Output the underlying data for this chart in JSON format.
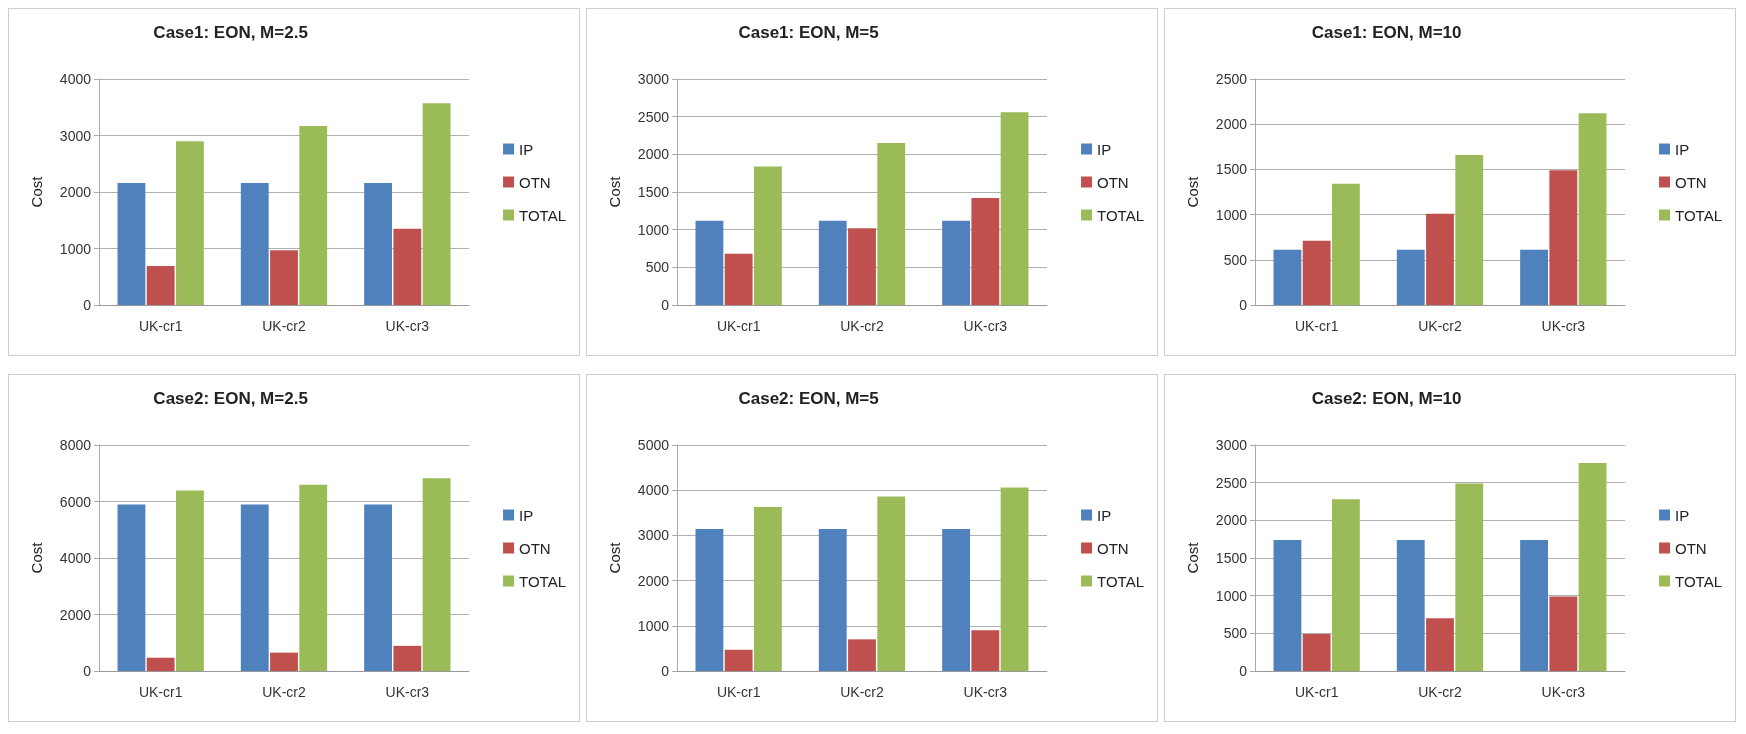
{
  "chart_data": [
    {
      "type": "bar",
      "title": "Case1: EON, M=2.5",
      "ylabel": "Cost",
      "categories": [
        "UK-cr1",
        "UK-cr2",
        "UK-cr3"
      ],
      "ylim": [
        0,
        4000
      ],
      "yticks": [
        0,
        1000,
        2000,
        3000,
        4000
      ],
      "grid": "y",
      "legend": "right",
      "series": [
        {
          "name": "IP",
          "color": "#4f81bd",
          "values": [
            2160,
            2160,
            2160
          ]
        },
        {
          "name": "OTN",
          "color": "#c0504d",
          "values": [
            690,
            970,
            1350
          ]
        },
        {
          "name": "TOTAL",
          "color": "#9bbb59",
          "values": [
            2900,
            3170,
            3570
          ]
        }
      ]
    },
    {
      "type": "bar",
      "title": "Case1: EON, M=5",
      "ylabel": "Cost",
      "categories": [
        "UK-cr1",
        "UK-cr2",
        "UK-cr3"
      ],
      "ylim": [
        0,
        3000
      ],
      "yticks": [
        0,
        500,
        1000,
        1500,
        2000,
        2500,
        3000
      ],
      "grid": "y",
      "legend": "right",
      "series": [
        {
          "name": "IP",
          "color": "#4f81bd",
          "values": [
            1120,
            1120,
            1120
          ]
        },
        {
          "name": "OTN",
          "color": "#c0504d",
          "values": [
            680,
            1020,
            1420
          ]
        },
        {
          "name": "TOTAL",
          "color": "#9bbb59",
          "values": [
            1840,
            2150,
            2560
          ]
        }
      ]
    },
    {
      "type": "bar",
      "title": "Case1: EON, M=10",
      "ylabel": "Cost",
      "categories": [
        "UK-cr1",
        "UK-cr2",
        "UK-cr3"
      ],
      "ylim": [
        0,
        2500
      ],
      "yticks": [
        0,
        500,
        1000,
        1500,
        2000,
        2500
      ],
      "grid": "y",
      "legend": "right",
      "series": [
        {
          "name": "IP",
          "color": "#4f81bd",
          "values": [
            610,
            610,
            610
          ]
        },
        {
          "name": "OTN",
          "color": "#c0504d",
          "values": [
            710,
            1010,
            1490
          ]
        },
        {
          "name": "TOTAL",
          "color": "#9bbb59",
          "values": [
            1340,
            1660,
            2120
          ]
        }
      ]
    },
    {
      "type": "bar",
      "title": "Case2: EON, M=2.5",
      "ylabel": "Cost",
      "categories": [
        "UK-cr1",
        "UK-cr2",
        "UK-cr3"
      ],
      "ylim": [
        0,
        8000
      ],
      "yticks": [
        0,
        2000,
        4000,
        6000,
        8000
      ],
      "grid": "y",
      "legend": "right",
      "series": [
        {
          "name": "IP",
          "color": "#4f81bd",
          "values": [
            5890,
            5890,
            5890
          ]
        },
        {
          "name": "OTN",
          "color": "#c0504d",
          "values": [
            470,
            650,
            890
          ]
        },
        {
          "name": "TOTAL",
          "color": "#9bbb59",
          "values": [
            6390,
            6590,
            6820
          ]
        }
      ]
    },
    {
      "type": "bar",
      "title": "Case2: EON, M=5",
      "ylabel": "Cost",
      "categories": [
        "UK-cr1",
        "UK-cr2",
        "UK-cr3"
      ],
      "ylim": [
        0,
        5000
      ],
      "yticks": [
        0,
        1000,
        2000,
        3000,
        4000,
        5000
      ],
      "grid": "y",
      "legend": "right",
      "series": [
        {
          "name": "IP",
          "color": "#4f81bd",
          "values": [
            3140,
            3140,
            3140
          ]
        },
        {
          "name": "OTN",
          "color": "#c0504d",
          "values": [
            470,
            700,
            900
          ]
        },
        {
          "name": "TOTAL",
          "color": "#9bbb59",
          "values": [
            3630,
            3860,
            4060
          ]
        }
      ]
    },
    {
      "type": "bar",
      "title": "Case2: EON, M=10",
      "ylabel": "Cost",
      "categories": [
        "UK-cr1",
        "UK-cr2",
        "UK-cr3"
      ],
      "ylim": [
        0,
        3000
      ],
      "yticks": [
        0,
        500,
        1000,
        1500,
        2000,
        2500,
        3000
      ],
      "grid": "y",
      "legend": "right",
      "series": [
        {
          "name": "IP",
          "color": "#4f81bd",
          "values": [
            1740,
            1740,
            1740
          ]
        },
        {
          "name": "OTN",
          "color": "#c0504d",
          "values": [
            490,
            700,
            990
          ]
        },
        {
          "name": "TOTAL",
          "color": "#9bbb59",
          "values": [
            2280,
            2490,
            2760
          ]
        }
      ]
    }
  ]
}
